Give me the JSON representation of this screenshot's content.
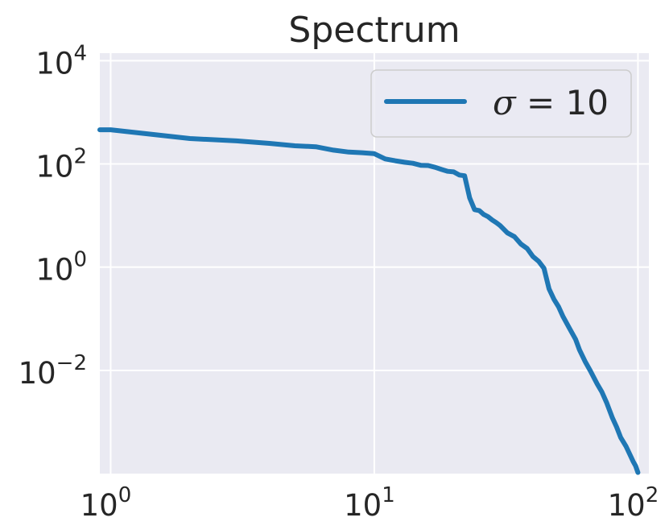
{
  "chart_data": {
    "type": "line",
    "title": "Spectrum",
    "xlabel": "",
    "ylabel": "",
    "x_scale": "log",
    "y_scale": "log",
    "xlim": [
      0.91,
      110
    ],
    "ylim": [
      0.0001,
      14000
    ],
    "grid": true,
    "legend_position": "top-right",
    "plot_background": "#eaeaf2",
    "x_ticks": [
      {
        "base": "10",
        "exp": "0",
        "value": 1
      },
      {
        "base": "10",
        "exp": "1",
        "value": 10
      },
      {
        "base": "10",
        "exp": "2",
        "value": 100
      }
    ],
    "y_ticks": [
      {
        "base": "10",
        "exp": "4",
        "value": 10000
      },
      {
        "base": "10",
        "exp": "2",
        "value": 100
      },
      {
        "base": "10",
        "exp": "0",
        "value": 1
      },
      {
        "base": "10",
        "exp": "−2",
        "value": 0.01
      }
    ],
    "series": [
      {
        "name": "σ = 10",
        "legend_symbol": "σ",
        "legend_equals": " = ",
        "legend_value": "10",
        "color": "#1f77b4",
        "x": [
          0.91,
          1,
          2,
          3,
          4,
          5,
          6,
          7,
          8,
          9,
          10,
          11,
          12,
          13,
          14,
          15,
          16,
          17,
          18,
          19,
          20,
          21,
          22,
          23,
          24,
          25,
          26,
          27,
          28,
          29,
          30,
          32,
          34,
          36,
          38,
          40,
          42,
          44,
          46,
          48,
          50,
          52,
          55,
          58,
          60,
          63,
          66,
          70,
          73,
          76,
          80,
          83,
          86,
          90,
          93,
          96,
          98,
          100
        ],
        "y": [
          460,
          460,
          310,
          280,
          250,
          225,
          215,
          185,
          170,
          165,
          158,
          125,
          115,
          108,
          103,
          94,
          93,
          86,
          78,
          72,
          70,
          61,
          59,
          22,
          13,
          12.5,
          10.5,
          9.5,
          8.2,
          7.3,
          6.4,
          4.6,
          3.9,
          2.8,
          2.3,
          1.6,
          1.3,
          0.95,
          0.38,
          0.24,
          0.17,
          0.11,
          0.065,
          0.04,
          0.025,
          0.015,
          0.0098,
          0.0055,
          0.0038,
          0.0024,
          0.0012,
          0.0008,
          0.0005,
          0.00034,
          0.00024,
          0.00017,
          0.00014,
          0.000105
        ]
      }
    ]
  }
}
